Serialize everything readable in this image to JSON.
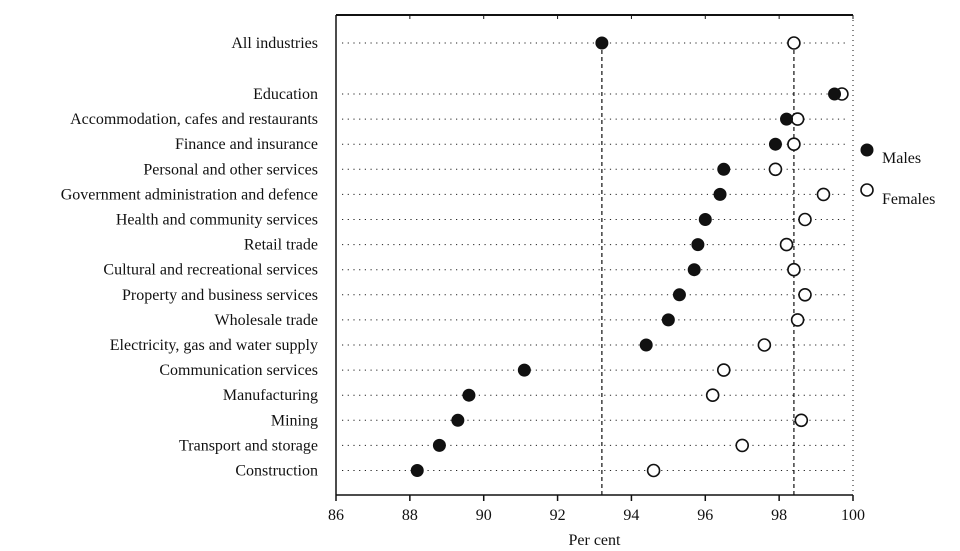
{
  "chart_data": {
    "type": "scatter",
    "xlabel": "Per cent",
    "xlim": [
      86,
      100
    ],
    "x_ticks": [
      "86",
      "88",
      "90",
      "92",
      "94",
      "96",
      "98",
      "100"
    ],
    "grid": false,
    "legend_position": "right",
    "categories": [
      "All industries",
      "Education",
      "Accommodation, cafes and restaurants",
      "Finance and insurance",
      "Personal and other services",
      "Government administration and defence",
      "Health and community services",
      "Retail trade",
      "Cultural and recreational services",
      "Property and business services",
      "Wholesale trade",
      "Electricity, gas and water supply",
      "Communication services",
      "Manufacturing",
      "Mining",
      "Transport and storage",
      "Construction"
    ],
    "series": [
      {
        "name": "Males",
        "marker": "filled-circle",
        "values": [
          93.2,
          99.5,
          98.2,
          97.9,
          96.5,
          96.4,
          96.0,
          95.8,
          95.7,
          95.3,
          95.0,
          94.4,
          91.1,
          89.6,
          89.3,
          88.8,
          88.2
        ]
      },
      {
        "name": "Females",
        "marker": "open-circle",
        "values": [
          98.4,
          99.7,
          98.5,
          98.4,
          97.9,
          99.2,
          98.7,
          98.2,
          98.4,
          98.7,
          98.5,
          97.6,
          96.5,
          96.2,
          98.6,
          97.0,
          94.6
        ]
      }
    ],
    "reference_lines": [
      {
        "series": "Males",
        "value": 93.2
      },
      {
        "series": "Females",
        "value": 98.4
      }
    ]
  }
}
